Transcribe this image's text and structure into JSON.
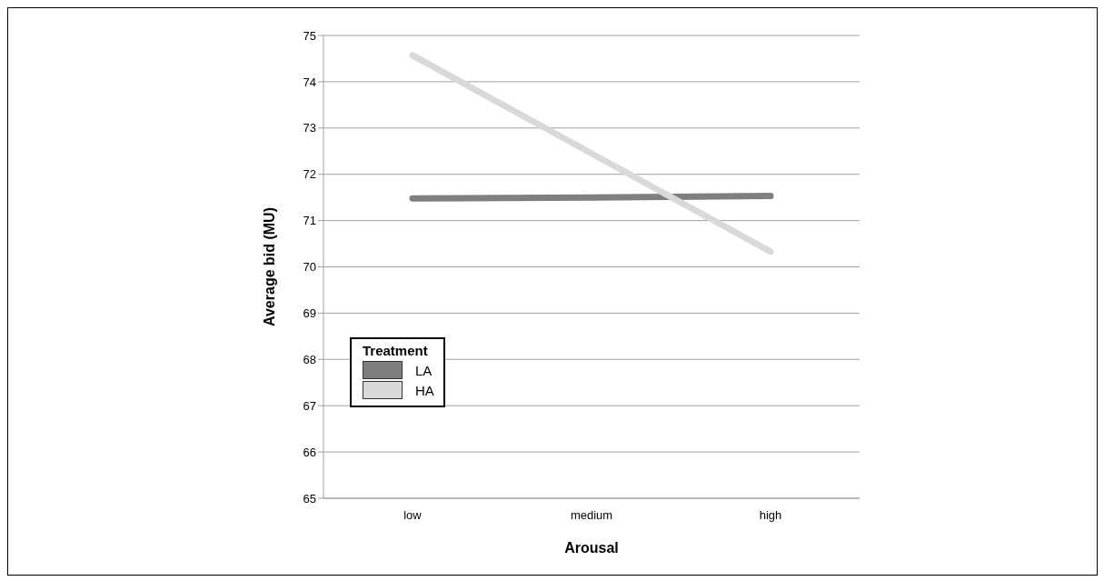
{
  "chart_data": {
    "type": "line",
    "xlabel": "Arousal",
    "ylabel": "Average bid (MU)",
    "legend_title": "Treatment",
    "categories": [
      "low",
      "medium",
      "high"
    ],
    "series": [
      {
        "name": "LA",
        "color": "#7f7f7f",
        "values": [
          71.48,
          71.5,
          71.53
        ]
      },
      {
        "name": "HA",
        "color": "#d9d9d9",
        "values": [
          74.57,
          72.45,
          70.33
        ]
      }
    ],
    "ylim": [
      65,
      75
    ],
    "yticks": [
      65,
      66,
      67,
      68,
      69,
      70,
      71,
      72,
      73,
      74,
      75
    ],
    "grid": "y",
    "legend": "bottom left",
    "marker": "none",
    "line_style": "solid"
  }
}
